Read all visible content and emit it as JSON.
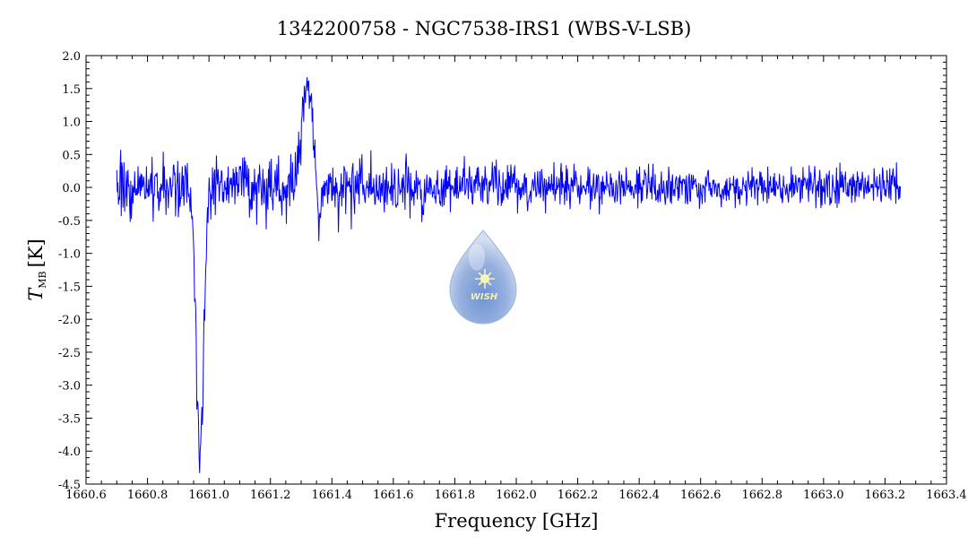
{
  "chart_data": {
    "type": "line",
    "title": "1342200758 - NGC7538-IRS1 (WBS-V-LSB)",
    "xlabel": "Frequency [GHz]",
    "ylabel_main": "T",
    "ylabel_sub": "MB",
    "ylabel_unit": "[K]",
    "xlim": [
      1660.68,
      1663.4
    ],
    "ylim": [
      -4.5,
      2.0
    ],
    "x_ticks": [
      "1660.6",
      "1660.8",
      "1661.0",
      "1661.2",
      "1661.4",
      "1661.6",
      "1661.8",
      "1662.0",
      "1662.2",
      "1662.4",
      "1662.6",
      "1662.8",
      "1663.0",
      "1663.2",
      "1663.4"
    ],
    "y_ticks": [
      "2.0",
      "1.5",
      "1.0",
      "0.5",
      "0.0",
      "-0.5",
      "-1.0",
      "-1.5",
      "-2.0",
      "-2.5",
      "-3.0",
      "-3.5",
      "-4.0",
      "-4.5"
    ],
    "grid": false,
    "line_color": "#0000ff",
    "series": [
      {
        "x_range": [
          1660.7,
          1663.25
        ],
        "noise_rms_low_freq": 0.3,
        "noise_rms_high_freq": 0.17,
        "features": [
          {
            "type": "absorption",
            "center": 1660.97,
            "peak": -4.1,
            "width": 0.012
          },
          {
            "type": "emission",
            "center": 1661.32,
            "peak": 1.5,
            "width": 0.018
          },
          {
            "type": "absorption",
            "center": 1661.36,
            "peak": -0.55,
            "width": 0.008
          }
        ]
      }
    ],
    "logo_text": "WISH"
  }
}
